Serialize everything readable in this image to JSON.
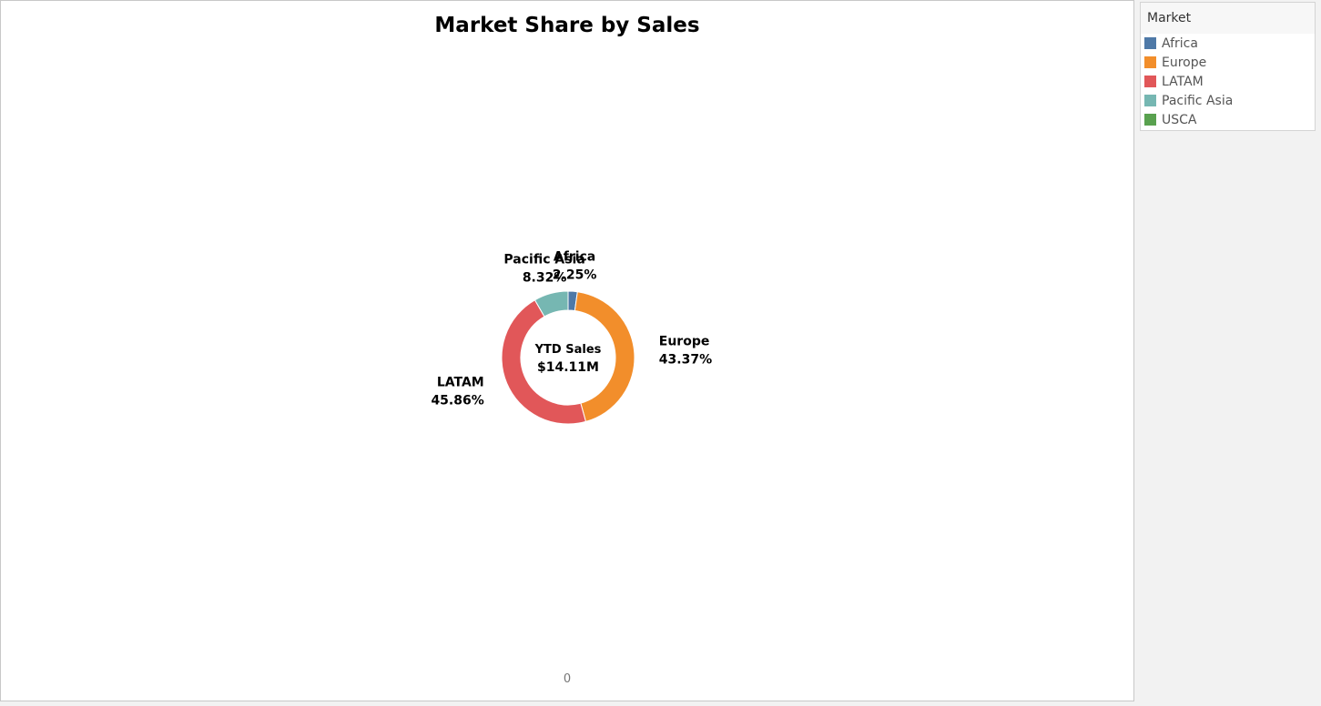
{
  "chart_data": {
    "type": "pie",
    "variant": "donut",
    "title": "Market Share by Sales",
    "center_label": {
      "line1": "YTD Sales",
      "line2": "$14.11M"
    },
    "categories": [
      "Africa",
      "Europe",
      "LATAM",
      "Pacific Asia",
      "USCA"
    ],
    "values": [
      2.25,
      43.37,
      45.86,
      8.32,
      0
    ],
    "value_labels": [
      "2.25%",
      "43.37%",
      "45.86%",
      "8.32%",
      ""
    ],
    "colors": [
      "#4e79a7",
      "#f28e2b",
      "#e15759",
      "#76b7b2",
      "#59a14f"
    ],
    "axis_zero_label": "0",
    "legend": {
      "title": "Market",
      "placement": "right",
      "items": [
        "Africa",
        "Europe",
        "LATAM",
        "Pacific Asia",
        "USCA"
      ]
    }
  }
}
